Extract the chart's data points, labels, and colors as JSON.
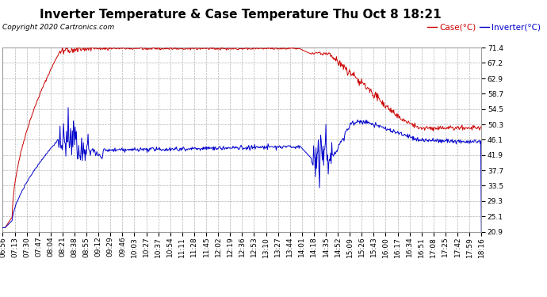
{
  "title": "Inverter Temperature & Case Temperature Thu Oct 8 18:21",
  "copyright": "Copyright 2020 Cartronics.com",
  "legend_case": "Case(°C)",
  "legend_inverter": "Inverter(°C)",
  "background_color": "#ffffff",
  "plot_bg_color": "#ffffff",
  "grid_color": "#aaaaaa",
  "case_color": "#cc0000",
  "inverter_color": "#0000cc",
  "yticks": [
    20.9,
    25.1,
    29.3,
    33.5,
    37.7,
    41.9,
    46.1,
    50.3,
    54.5,
    58.7,
    62.9,
    67.2,
    71.4
  ],
  "ymin": 20.9,
  "ymax": 71.4,
  "title_fontsize": 11,
  "axis_fontsize": 6.5,
  "legend_fontsize": 7.5,
  "copyright_fontsize": 6.5,
  "xtick_labels": [
    "06:56",
    "07:13",
    "07:30",
    "07:47",
    "08:04",
    "08:21",
    "08:38",
    "08:55",
    "09:12",
    "09:29",
    "09:46",
    "10:03",
    "10:27",
    "10:37",
    "10:54",
    "11:11",
    "11:28",
    "11:45",
    "12:02",
    "12:19",
    "12:36",
    "12:53",
    "13:10",
    "13:27",
    "13:44",
    "14:01",
    "14:18",
    "14:35",
    "14:52",
    "15:09",
    "15:26",
    "15:43",
    "16:00",
    "16:17",
    "16:34",
    "16:51",
    "17:08",
    "17:25",
    "17:42",
    "17:59",
    "18:16"
  ]
}
